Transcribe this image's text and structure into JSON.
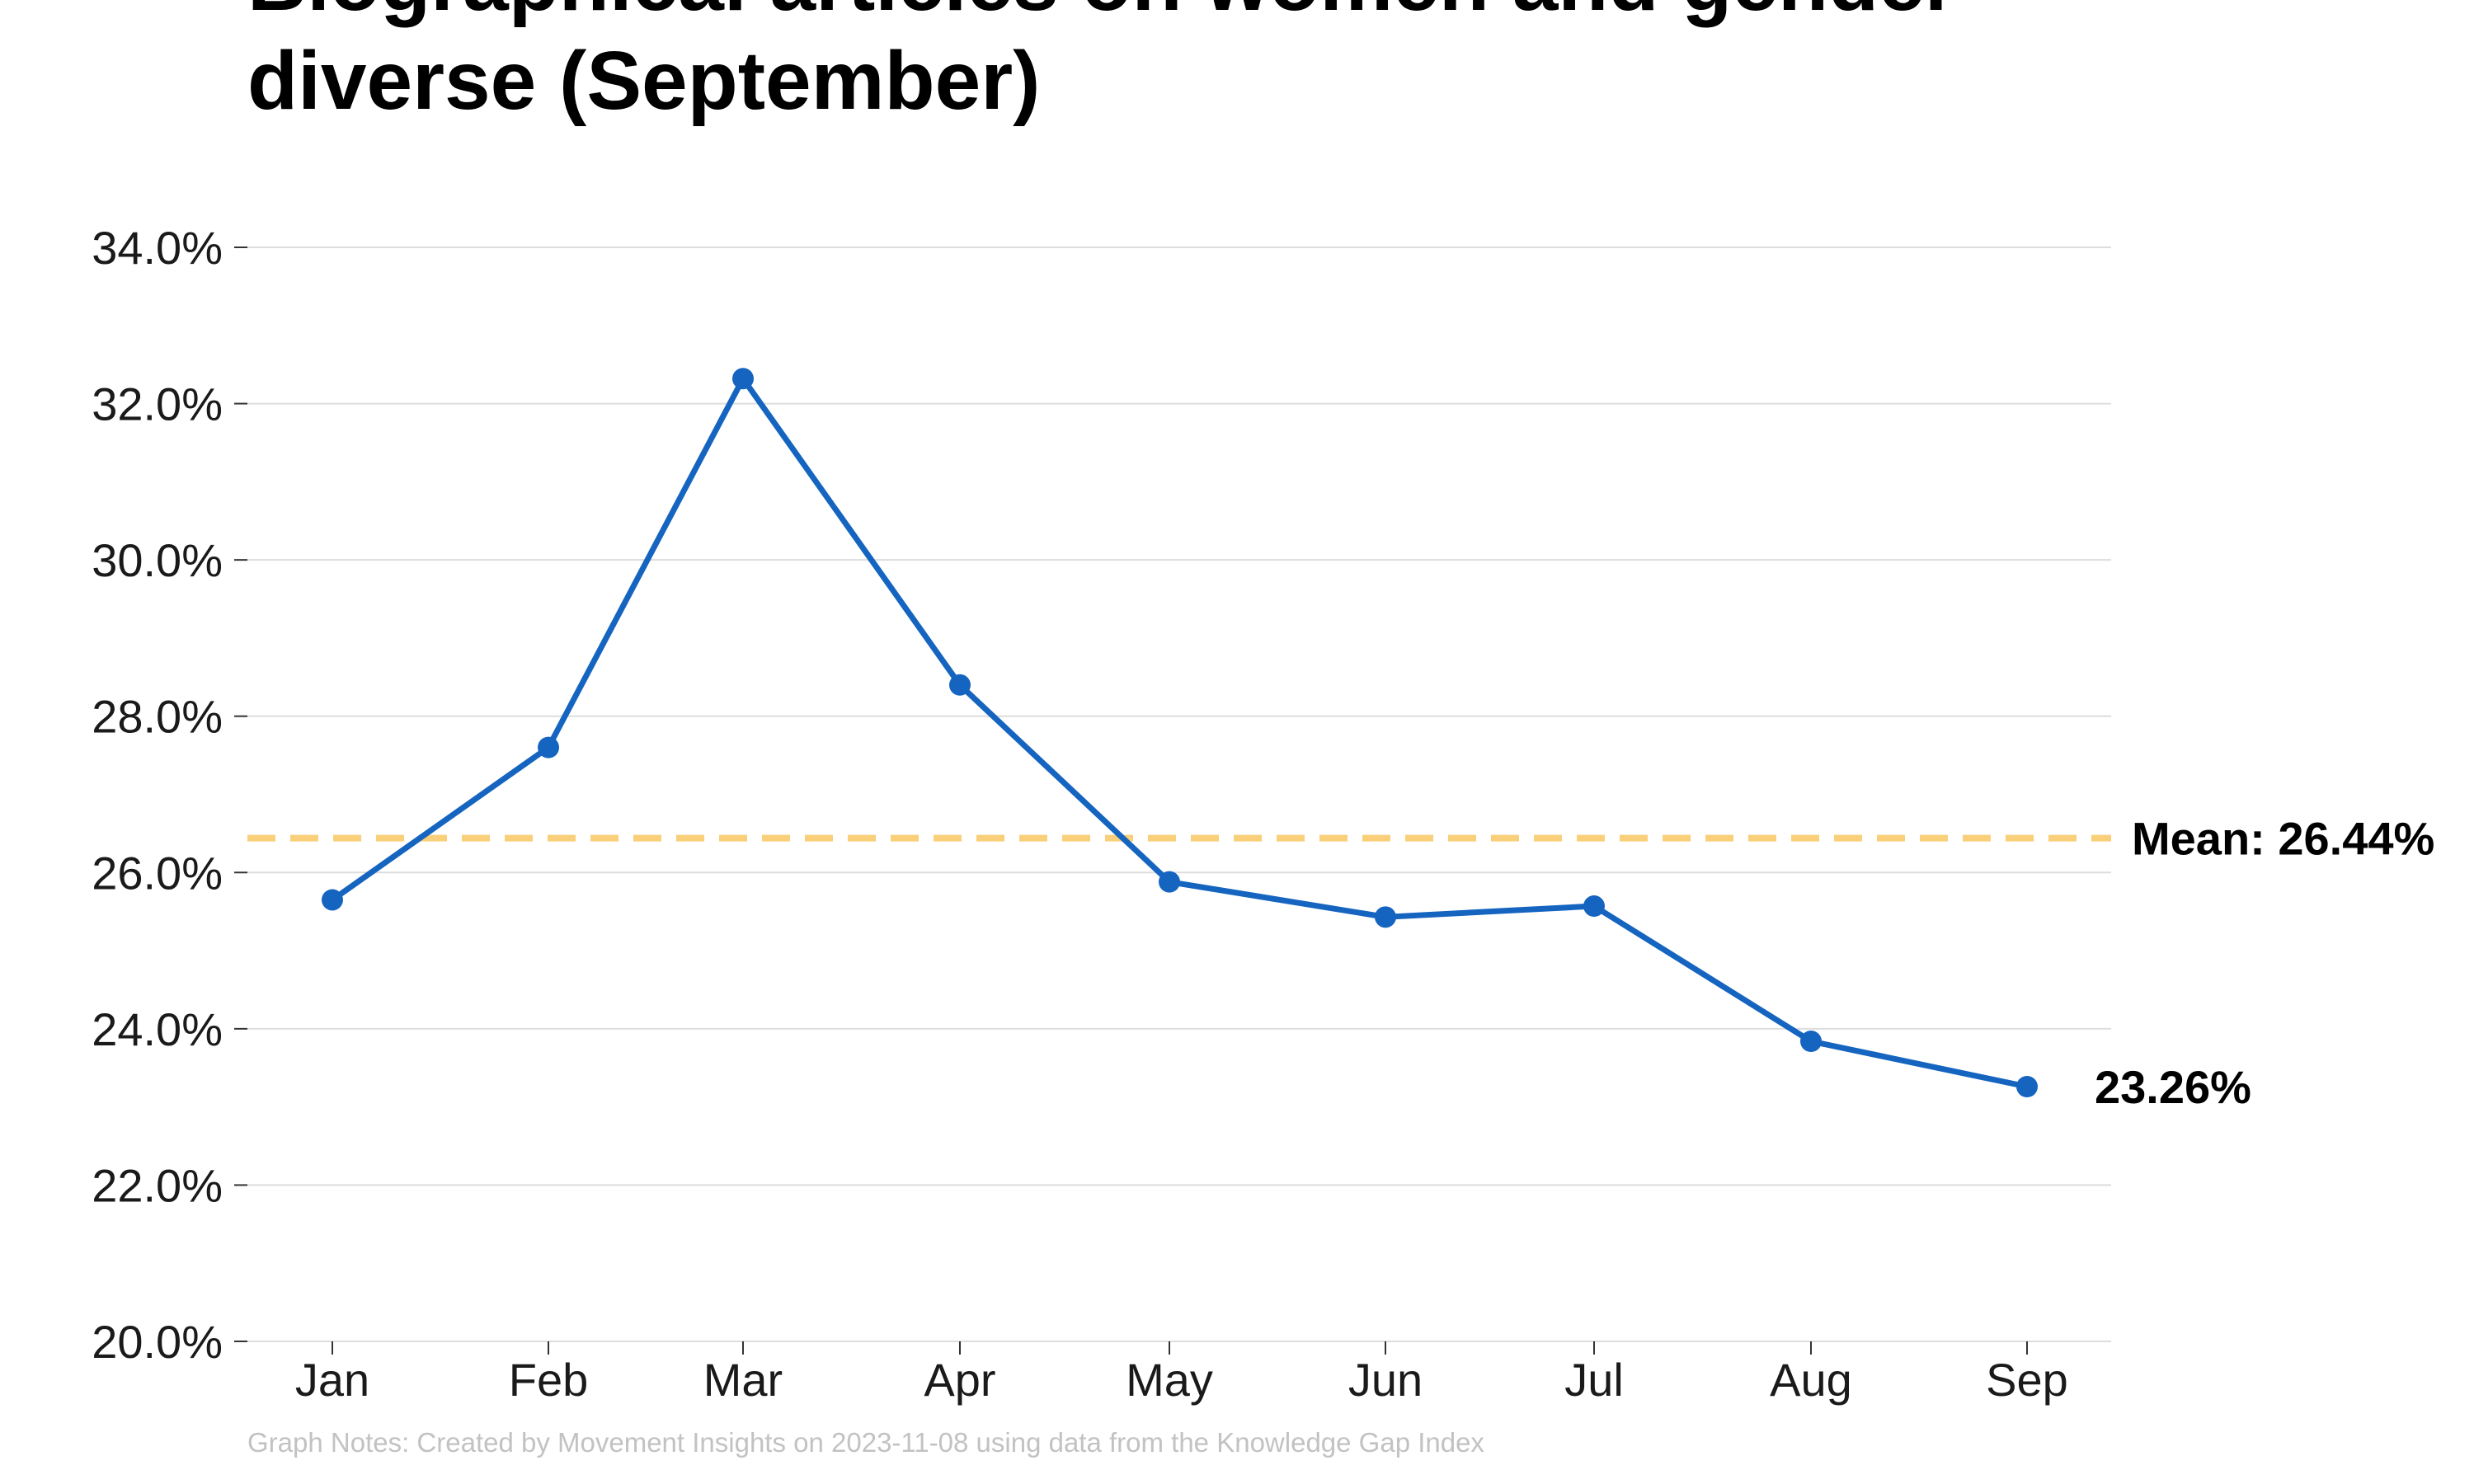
{
  "title_line1": "Biographical articles on women and gender",
  "title_line2": "diverse (September)",
  "footnote": "Graph Notes: Created by Movement Insights  on 2023-11-08 using data from the Knowledge Gap Index",
  "colors": {
    "line": "#1565c0",
    "mean": "#f9cf7a",
    "grid": "#dddddd",
    "axis": "#cccccc"
  },
  "chart_data": {
    "type": "line",
    "title": "Biographical articles on women and gender diverse (September)",
    "xlabel": "",
    "ylabel": "",
    "categories": [
      "Jan",
      "Feb",
      "Mar",
      "Apr",
      "May",
      "Jun",
      "Jul",
      "Aug",
      "Sep"
    ],
    "series": [
      {
        "values": [
          25.65,
          27.6,
          32.32,
          28.4,
          25.88,
          25.43,
          25.57,
          23.84,
          23.26
        ]
      }
    ],
    "ylim": [
      20,
      34
    ],
    "yticks": [
      20,
      22,
      24,
      26,
      28,
      30,
      32,
      34
    ],
    "ytick_labels": [
      "20.0%",
      "22.0%",
      "24.0%",
      "26.0%",
      "28.0%",
      "30.0%",
      "32.0%",
      "34.0%"
    ],
    "mean_value": 26.44,
    "mean_label": "Mean: 26.44%",
    "last_value_label": "23.26%",
    "grid": true,
    "legend": "none"
  }
}
